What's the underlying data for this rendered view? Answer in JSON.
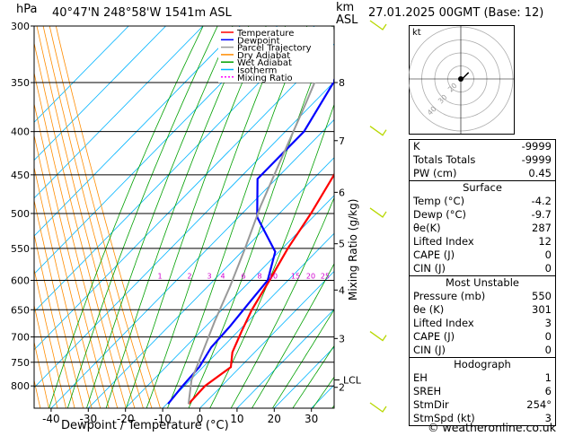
{
  "header": {
    "location": "40°47'N  248°58'W  1541m  ASL",
    "date": "27.01.2025  00GMT  (Base: 12)",
    "hpa_label": "hPa",
    "km_label": "km",
    "asl_label": "ASL"
  },
  "chart_data": {
    "type": "line",
    "title": "",
    "xlabel": "Dewpoint / Temperature (°C)",
    "ylabel": "hPa",
    "right_ylabel": "Mixing Ratio (g/kg)",
    "xlim": [
      -45,
      35
    ],
    "ylim": [
      300,
      850
    ],
    "pressure_ticks": [
      300,
      350,
      400,
      450,
      500,
      550,
      600,
      650,
      700,
      750,
      800
    ],
    "temp_ticks": [
      -40,
      -30,
      -20,
      -10,
      0,
      10,
      20,
      30
    ],
    "km_ticks": [
      {
        "label": "8",
        "p": 350
      },
      {
        "label": "7",
        "p": 410
      },
      {
        "label": "6",
        "p": 472
      },
      {
        "label": "5",
        "p": 543
      },
      {
        "label": "4",
        "p": 616
      },
      {
        "label": "3",
        "p": 703
      },
      {
        "label": "2",
        "p": 803
      }
    ],
    "lcl": {
      "label": "LCL",
      "p": 787
    },
    "mixing_ratio_labels": [
      "1",
      "2",
      "3",
      "4",
      "6",
      "8",
      "10",
      "15",
      "20",
      "25"
    ],
    "mixing_ratio_values": [
      1,
      2,
      3,
      4,
      6,
      8,
      10,
      15,
      20,
      25
    ],
    "legend": [
      {
        "name": "Temperature",
        "color": "#ff0000"
      },
      {
        "name": "Dewpoint",
        "color": "#0000ff"
      },
      {
        "name": "Parcel Trajectory",
        "color": "#999999"
      },
      {
        "name": "Dry Adiabat",
        "color": "#ff8c00"
      },
      {
        "name": "Wet Adiabat",
        "color": "#00a000"
      },
      {
        "name": "Isotherm",
        "color": "#00b4ff"
      },
      {
        "name": "Mixing Ratio",
        "color": "#ff00ff"
      }
    ],
    "legend_position": "top-right",
    "series": [
      {
        "name": "Temperature",
        "color": "#ff0000",
        "points": [
          [
            -4.2,
            840
          ],
          [
            -4.5,
            800
          ],
          [
            -2.5,
            760
          ],
          [
            -6,
            730
          ],
          [
            -9,
            690
          ],
          [
            -12,
            650
          ],
          [
            -15,
            600
          ],
          [
            -18.5,
            550
          ],
          [
            -21.5,
            500
          ],
          [
            -25.5,
            450
          ],
          [
            -31,
            400
          ],
          [
            -38,
            350
          ],
          [
            -45,
            300
          ]
        ]
      },
      {
        "name": "Dewpoint",
        "color": "#0000ff",
        "points": [
          [
            -9.7,
            840
          ],
          [
            -10.5,
            800
          ],
          [
            -11,
            760
          ],
          [
            -13,
            720
          ],
          [
            -13.5,
            680
          ],
          [
            -14.5,
            640
          ],
          [
            -15.5,
            600
          ],
          [
            -21,
            555
          ],
          [
            -35,
            505
          ],
          [
            -45,
            455
          ],
          [
            -45,
            400
          ],
          [
            -50,
            350
          ],
          [
            -60,
            300
          ]
        ]
      },
      {
        "name": "Parcel Trajectory",
        "color": "#999999",
        "points": [
          [
            -4.2,
            840
          ],
          [
            -9.7,
            787
          ],
          [
            -14,
            730
          ],
          [
            -19,
            670
          ],
          [
            -24,
            610
          ],
          [
            -30,
            550
          ],
          [
            -37,
            490
          ],
          [
            -44,
            430
          ],
          [
            -52,
            370
          ],
          [
            -60,
            320
          ],
          [
            -65,
            300
          ]
        ]
      }
    ],
    "wind_barbs_p": [
      300,
      400,
      500,
      700,
      850
    ]
  },
  "stats": {
    "rows": [
      {
        "label": "K",
        "value": "-9999"
      },
      {
        "label": "Totals Totals",
        "value": "-9999"
      },
      {
        "label": "PW (cm)",
        "value": "0.45"
      }
    ],
    "surface": {
      "title": "Surface",
      "rows": [
        {
          "label": "Temp (°C)",
          "value": "-4.2"
        },
        {
          "label": "Dewp (°C)",
          "value": "-9.7"
        },
        {
          "label": "θe(K)",
          "value": "287"
        },
        {
          "label": "Lifted Index",
          "value": "12"
        },
        {
          "label": "CAPE (J)",
          "value": "0"
        },
        {
          "label": "CIN (J)",
          "value": "0"
        }
      ]
    },
    "most_unstable": {
      "title": "Most Unstable",
      "rows": [
        {
          "label": "Pressure (mb)",
          "value": "550"
        },
        {
          "label": "θe (K)",
          "value": "301"
        },
        {
          "label": "Lifted Index",
          "value": "3"
        },
        {
          "label": "CAPE (J)",
          "value": "0"
        },
        {
          "label": "CIN (J)",
          "value": "0"
        }
      ]
    },
    "hodograph": {
      "title": "Hodograph",
      "rows": [
        {
          "label": "EH",
          "value": "1"
        },
        {
          "label": "SREH",
          "value": "6"
        },
        {
          "label": "StmDir",
          "value": "254°"
        },
        {
          "label": "StmSpd (kt)",
          "value": "3"
        }
      ]
    }
  },
  "hodograph_plot": {
    "unit_label": "kt",
    "ring_labels": [
      "20",
      "30",
      "40"
    ],
    "trace_kt": [
      [
        0,
        0
      ],
      [
        1,
        0
      ],
      [
        3,
        2
      ],
      [
        6,
        5
      ]
    ]
  },
  "footer": {
    "copyright": "© weatheronline.co.uk"
  }
}
